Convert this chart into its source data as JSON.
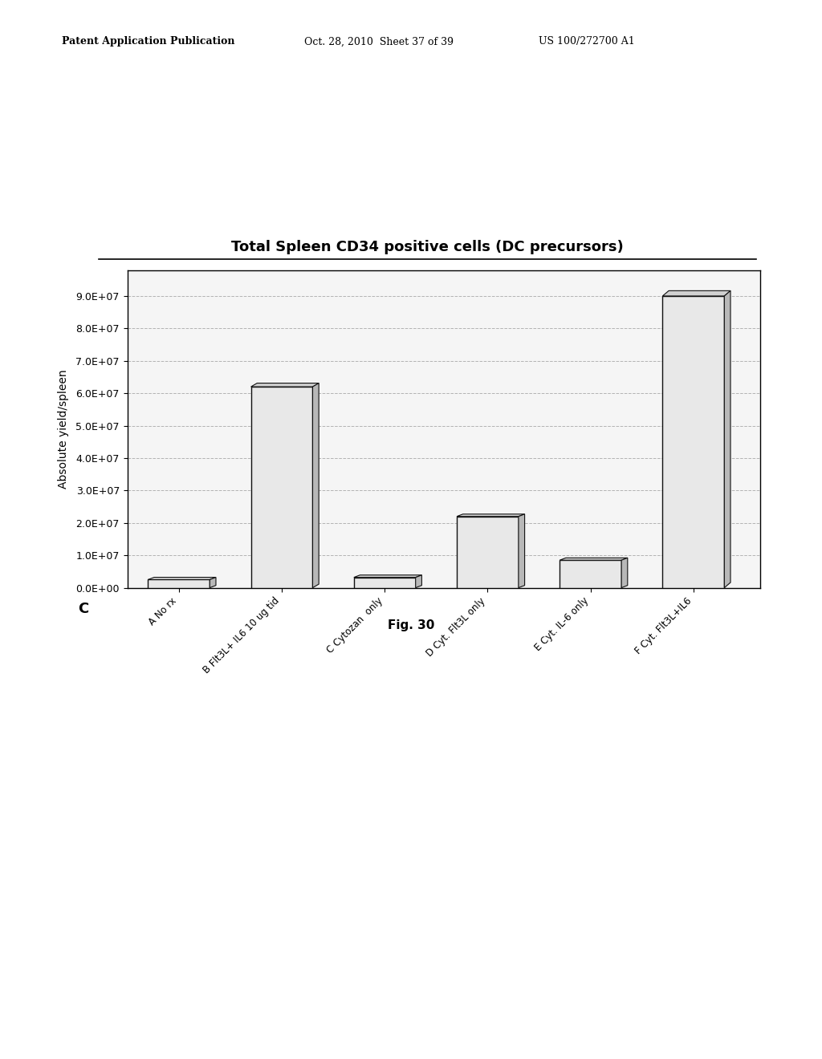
{
  "title": "Total Spleen CD34 positive cells (DC precursors)",
  "ylabel": "Absolute yield/spleen",
  "categories": [
    "A No rx",
    "B Flt3L+ IL6 10 ug tid",
    "C Cytozan  only",
    "D Cyt. Flt3L only",
    "E Cyt. IL-6 only",
    "F Cyt. Flt3L+IL6"
  ],
  "values": [
    2500000.0,
    62000000.0,
    3200000.0,
    22000000.0,
    8500000.0,
    90000000.0
  ],
  "ylim": [
    0,
    98000000.0
  ],
  "yticks": [
    0.0,
    10000000.0,
    20000000.0,
    30000000.0,
    40000000.0,
    50000000.0,
    60000000.0,
    70000000.0,
    80000000.0,
    90000000.0
  ],
  "ytick_labels": [
    "0.0E+00",
    "1.0E+07",
    "2.0E+07",
    "3.0E+07",
    "4.0E+07",
    "5.0E+07",
    "6.0E+07",
    "7.0E+07",
    "8.0E+07",
    "9.0E+07"
  ],
  "bar_face_color": "#e8e8e8",
  "bar_top_color": "#d0d0d0",
  "bar_side_color": "#b8b8b8",
  "bar_edge_color": "#111111",
  "background_color": "#ffffff",
  "plot_bg_color": "#f5f5f5",
  "fig_label": "C",
  "fig_caption": "Fig. 30",
  "header1": "Patent Application Publication",
  "header2": "Oct. 28, 2010  Sheet 37 of 39",
  "header3": "US 100/272700 A1",
  "title_fontsize": 13,
  "ylabel_fontsize": 10,
  "ytick_fontsize": 9,
  "xtick_fontsize": 8.5,
  "header_fontsize": 9,
  "caption_fontsize": 11,
  "figlabel_fontsize": 13
}
